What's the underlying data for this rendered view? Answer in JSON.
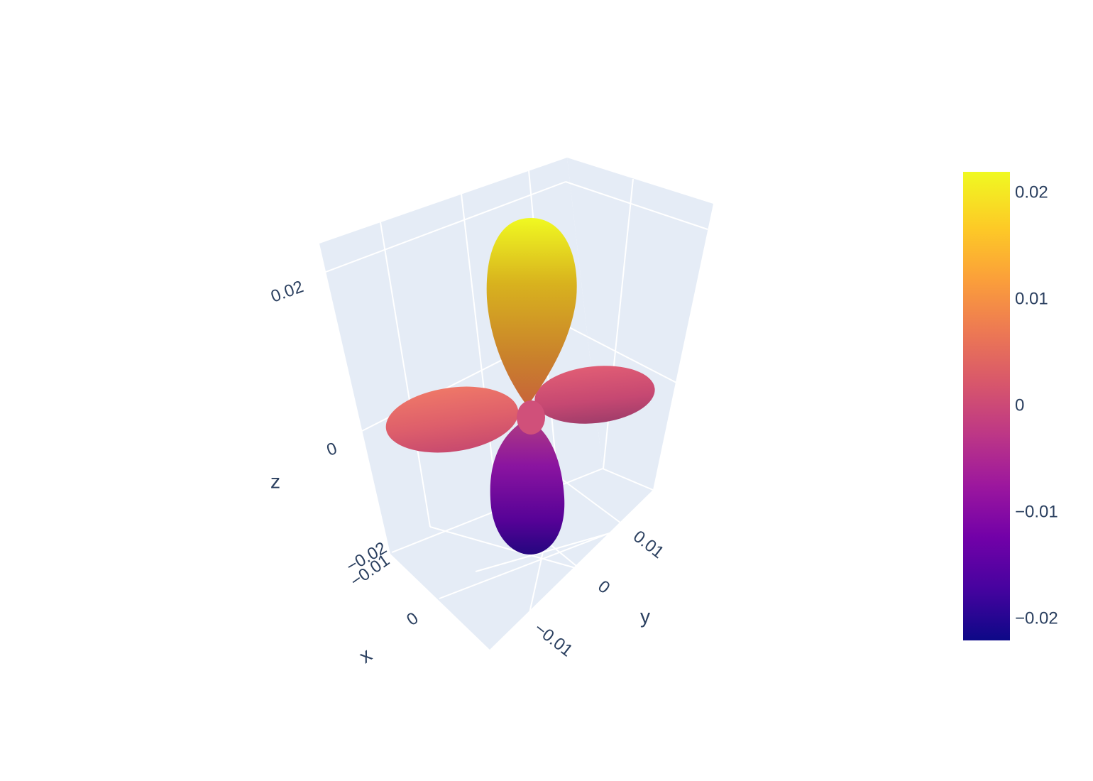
{
  "chart_data": {
    "type": "surface-3d",
    "title": "",
    "axes": {
      "x": {
        "title": "x",
        "ticks": [
          "−0.01",
          "0"
        ]
      },
      "y": {
        "title": "y",
        "ticks": [
          "−0.01",
          "0",
          "0.01"
        ]
      },
      "z": {
        "title": "z",
        "ticks": [
          "−0.02",
          "0",
          "0.02"
        ]
      }
    },
    "colorbar": {
      "range": [
        -0.022,
        0.022
      ],
      "ticks": [
        "−0.02",
        "−0.01",
        "0",
        "0.01",
        "0.02"
      ],
      "tick_values": [
        -0.02,
        -0.01,
        0,
        0.01,
        0.02
      ],
      "colorscale": [
        "#0d0887",
        "#46039f",
        "#7201a8",
        "#9c179e",
        "#bd3786",
        "#d8576b",
        "#ed7953",
        "#fb9f3a",
        "#fdca26",
        "#f0f921"
      ]
    },
    "surface": {
      "description_shape": "four-lobed orbital",
      "lobes": [
        {
          "name": "upper lobe",
          "value": 0.022
        },
        {
          "name": "lower lobe",
          "value": -0.022
        },
        {
          "name": "left lobe",
          "value": 0.004
        },
        {
          "name": "right lobe",
          "value": 0.002
        }
      ]
    },
    "scene_background": "#e5ecf6",
    "grid_color": "#ffffff"
  }
}
